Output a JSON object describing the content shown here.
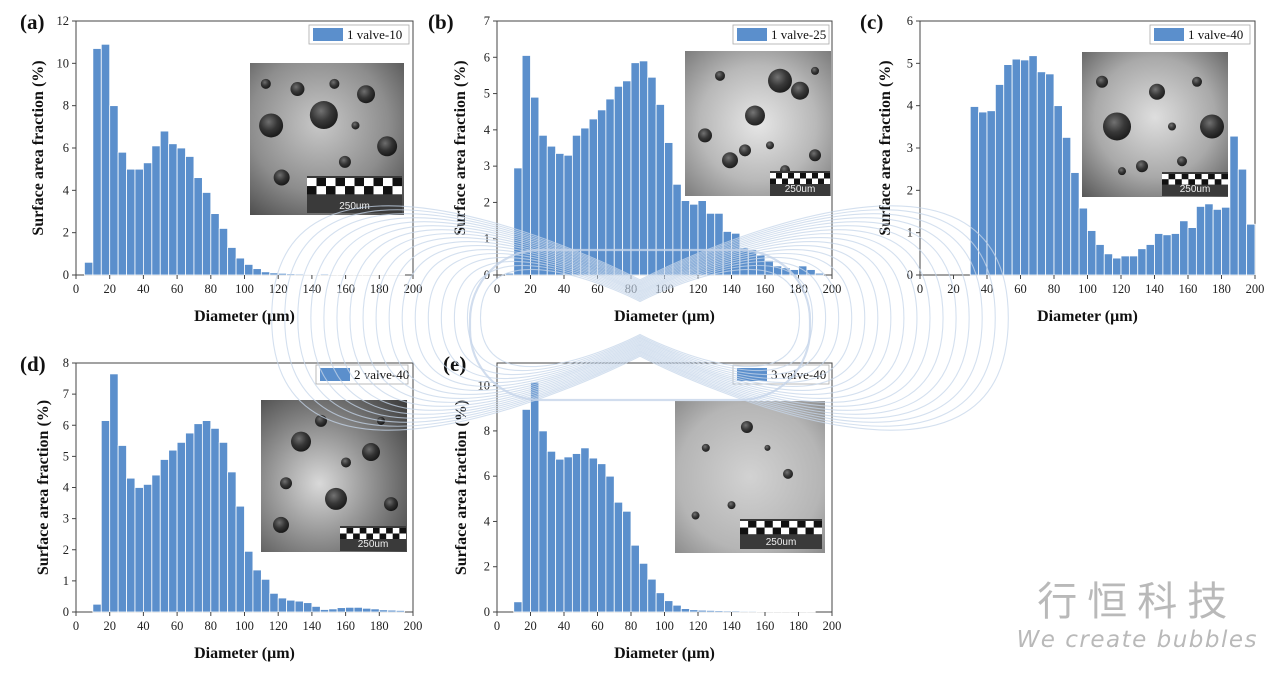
{
  "chart_data": [
    {
      "type": "bar",
      "panel_label": "(a)",
      "legend": "1 valve-10",
      "xlabel": "Diameter (μm)",
      "ylabel": "Surface area fraction (%)",
      "xlim": [
        0,
        200
      ],
      "ylim": [
        0,
        12
      ],
      "xticks": [
        "0",
        "20",
        "40",
        "60",
        "80",
        "100",
        "120",
        "140",
        "160",
        "180",
        "200"
      ],
      "yticks": [
        "0",
        "2",
        "4",
        "6",
        "8",
        "10",
        "12"
      ],
      "bin_width": 5,
      "x": [
        7.5,
        12.5,
        17.5,
        22.5,
        27.5,
        32.5,
        37.5,
        42.5,
        47.5,
        52.5,
        57.5,
        62.5,
        67.5,
        72.5,
        77.5,
        82.5,
        87.5,
        92.5,
        97.5,
        102.5,
        107.5,
        112.5,
        117.5,
        122.5,
        127.5,
        132.5,
        137.5,
        142.5,
        147.5,
        152.5,
        157.5,
        162.5,
        167.5,
        172.5,
        177.5,
        182.5,
        187.5,
        192.5
      ],
      "values": [
        0.6,
        10.7,
        10.9,
        8.0,
        5.8,
        5.0,
        5.0,
        5.3,
        6.1,
        6.8,
        6.2,
        6.0,
        5.6,
        4.6,
        3.9,
        2.9,
        2.2,
        1.3,
        0.8,
        0.5,
        0.3,
        0.15,
        0.1,
        0.08,
        0.06,
        0.05,
        0.04,
        0.03,
        0.05,
        0.03,
        0.02,
        0.03,
        0.02,
        0.02,
        0.02,
        0.02,
        0.02,
        0.01
      ],
      "inset_scale_text": "250um"
    },
    {
      "type": "bar",
      "panel_label": "(b)",
      "legend": "1 valve-25",
      "xlabel": "Diameter (μm)",
      "ylabel": "Surface area fraction (%)",
      "xlim": [
        0,
        200
      ],
      "ylim": [
        0,
        7
      ],
      "xticks": [
        "0",
        "20",
        "40",
        "60",
        "80",
        "100",
        "120",
        "140",
        "160",
        "180",
        "200"
      ],
      "yticks": [
        "0",
        "1",
        "2",
        "3",
        "4",
        "5",
        "6",
        "7"
      ],
      "bin_width": 5,
      "x": [
        7.5,
        12.5,
        17.5,
        22.5,
        27.5,
        32.5,
        37.5,
        42.5,
        47.5,
        52.5,
        57.5,
        62.5,
        67.5,
        72.5,
        77.5,
        82.5,
        87.5,
        92.5,
        97.5,
        102.5,
        107.5,
        112.5,
        117.5,
        122.5,
        127.5,
        132.5,
        137.5,
        142.5,
        147.5,
        152.5,
        157.5,
        162.5,
        167.5,
        172.5,
        177.5,
        182.5,
        187.5,
        192.5
      ],
      "values": [
        0.05,
        2.95,
        6.05,
        4.9,
        3.85,
        3.55,
        3.35,
        3.3,
        3.85,
        4.05,
        4.3,
        4.55,
        4.85,
        5.2,
        5.35,
        5.85,
        5.9,
        5.45,
        4.7,
        3.65,
        2.5,
        2.05,
        1.95,
        2.05,
        1.7,
        1.7,
        1.2,
        1.15,
        0.75,
        0.7,
        0.55,
        0.4,
        0.25,
        0.2,
        0.15,
        0.25,
        0.15,
        0.05
      ],
      "inset_scale_text": "250um"
    },
    {
      "type": "bar",
      "panel_label": "(c)",
      "legend": "1 valve-40",
      "xlabel": "Diameter (μm)",
      "ylabel": "Surface area fraction (%)",
      "xlim": [
        0,
        200
      ],
      "ylim": [
        0,
        6
      ],
      "xticks": [
        "0",
        "20",
        "40",
        "60",
        "80",
        "100",
        "120",
        "140",
        "160",
        "180",
        "200"
      ],
      "yticks": [
        "0",
        "1",
        "2",
        "3",
        "4",
        "5",
        "6"
      ],
      "bin_width": 5,
      "x": [
        32.5,
        37.5,
        42.5,
        47.5,
        52.5,
        57.5,
        62.5,
        67.5,
        72.5,
        77.5,
        82.5,
        87.5,
        92.5,
        97.5,
        102.5,
        107.5,
        112.5,
        117.5,
        122.5,
        127.5,
        132.5,
        137.5,
        142.5,
        147.5,
        152.5,
        157.5,
        162.5,
        167.5,
        172.5,
        177.5,
        182.5,
        187.5,
        192.5,
        197.5
      ],
      "values": [
        3.98,
        3.85,
        3.88,
        4.5,
        4.97,
        5.1,
        5.08,
        5.18,
        4.8,
        4.75,
        4.0,
        3.25,
        2.42,
        1.58,
        1.05,
        0.72,
        0.5,
        0.4,
        0.45,
        0.45,
        0.62,
        0.72,
        0.98,
        0.95,
        0.98,
        1.28,
        1.12,
        1.62,
        1.68,
        1.55,
        1.6,
        3.28,
        2.5,
        1.2
      ],
      "inset_scale_text": "250um"
    },
    {
      "type": "bar",
      "panel_label": "(d)",
      "legend": "2 valve-40",
      "xlabel": "Diameter (μm)",
      "ylabel": "Surface area fraction (%)",
      "xlim": [
        0,
        200
      ],
      "ylim": [
        0,
        8
      ],
      "xticks": [
        "0",
        "20",
        "40",
        "60",
        "80",
        "100",
        "120",
        "140",
        "160",
        "180",
        "200"
      ],
      "yticks": [
        "0",
        "1",
        "2",
        "3",
        "4",
        "5",
        "6",
        "7",
        "8"
      ],
      "bin_width": 5,
      "x": [
        12.5,
        17.5,
        22.5,
        27.5,
        32.5,
        37.5,
        42.5,
        47.5,
        52.5,
        57.5,
        62.5,
        67.5,
        72.5,
        77.5,
        82.5,
        87.5,
        92.5,
        97.5,
        102.5,
        107.5,
        112.5,
        117.5,
        122.5,
        127.5,
        132.5,
        137.5,
        142.5,
        147.5,
        152.5,
        157.5,
        162.5,
        167.5,
        172.5,
        177.5,
        182.5,
        187.5,
        192.5
      ],
      "values": [
        0.25,
        6.15,
        7.65,
        5.35,
        4.3,
        4.0,
        4.1,
        4.4,
        4.9,
        5.2,
        5.45,
        5.75,
        6.05,
        6.15,
        5.9,
        5.45,
        4.5,
        3.4,
        1.95,
        1.35,
        1.05,
        0.6,
        0.45,
        0.38,
        0.35,
        0.3,
        0.18,
        0.08,
        0.1,
        0.14,
        0.15,
        0.15,
        0.12,
        0.1,
        0.07,
        0.06,
        0.05
      ],
      "inset_scale_text": "250um"
    },
    {
      "type": "bar",
      "panel_label": "(e)",
      "legend": "3 valve-40",
      "xlabel": "Diameter (μm)",
      "ylabel": "Surface area fraction (%)",
      "xlim": [
        0,
        200
      ],
      "ylim": [
        0,
        11
      ],
      "xticks": [
        "0",
        "20",
        "40",
        "60",
        "80",
        "100",
        "120",
        "140",
        "160",
        "180",
        "200"
      ],
      "yticks": [
        "0",
        "2",
        "4",
        "6",
        "8",
        "10"
      ],
      "bin_width": 5,
      "x": [
        12.5,
        17.5,
        22.5,
        27.5,
        32.5,
        37.5,
        42.5,
        47.5,
        52.5,
        57.5,
        62.5,
        67.5,
        72.5,
        77.5,
        82.5,
        87.5,
        92.5,
        97.5,
        102.5,
        107.5,
        112.5,
        117.5,
        122.5,
        127.5,
        132.5,
        137.5,
        142.5,
        147.5,
        152.5,
        157.5,
        162.5,
        167.5,
        172.5,
        177.5,
        182.5,
        187.5
      ],
      "values": [
        0.45,
        8.95,
        10.15,
        8.0,
        7.1,
        6.75,
        6.85,
        7.0,
        7.25,
        6.8,
        6.55,
        6.0,
        4.85,
        4.45,
        2.95,
        2.15,
        1.45,
        0.85,
        0.5,
        0.3,
        0.15,
        0.1,
        0.08,
        0.07,
        0.06,
        0.05,
        0.05,
        0.04,
        0.04,
        0.03,
        0.03,
        0.02,
        0.02,
        0.02,
        0.01,
        0.01
      ],
      "inset_scale_text": "250um"
    }
  ],
  "watermark": {
    "line1": "行恒科技",
    "line2": "We create bubbles"
  },
  "colors": {
    "bar": "#5b8fcc",
    "watermark_lines": "#c5d5ea",
    "text": "#111111"
  }
}
